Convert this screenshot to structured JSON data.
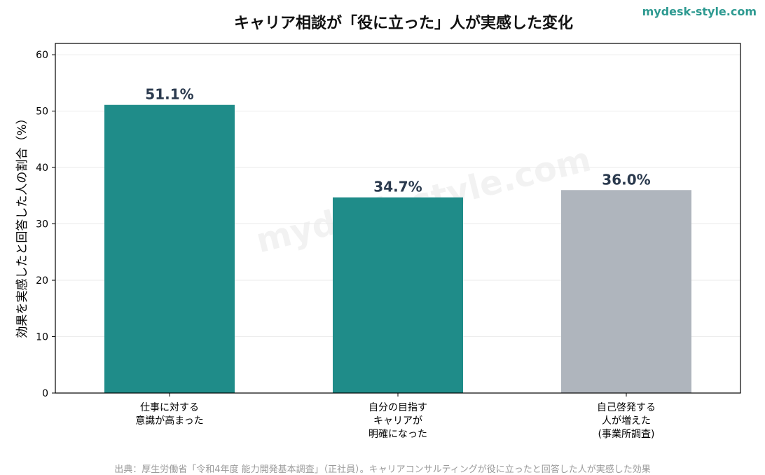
{
  "brand": "mydesk-style.com",
  "watermark": "mydesk-style.com",
  "source": "出典：厚生労働省「令和4年度 能力開発基本調査」（正社員）。キャリアコンサルティングが役に立ったと回答した人が実感した効果",
  "colors": {
    "teal": "#1f8c89",
    "gray": "#afb5bd",
    "label": "#2b3a4e",
    "brand": "#2e9a91"
  },
  "chart_data": {
    "type": "bar",
    "title": "キャリア相談が「役に立った」人が実感した変化",
    "ylabel": "効果を実感したと回答した人の割合（%）",
    "xlabel": "",
    "ylim": [
      0,
      62
    ],
    "yticks": [
      0,
      10,
      20,
      30,
      40,
      50,
      60
    ],
    "grid": true,
    "categories": [
      [
        "仕事に対する",
        "意識が高まった"
      ],
      [
        "自分の目指す",
        "キャリアが",
        "明確になった"
      ],
      [
        "自己啓発する",
        "人が増えた",
        "(事業所調査)"
      ]
    ],
    "values": [
      51.1,
      34.7,
      36.0
    ],
    "data_labels": [
      "51.1%",
      "34.7%",
      "36.0%"
    ],
    "bar_colors": [
      "#1f8c89",
      "#1f8c89",
      "#afb5bd"
    ]
  }
}
